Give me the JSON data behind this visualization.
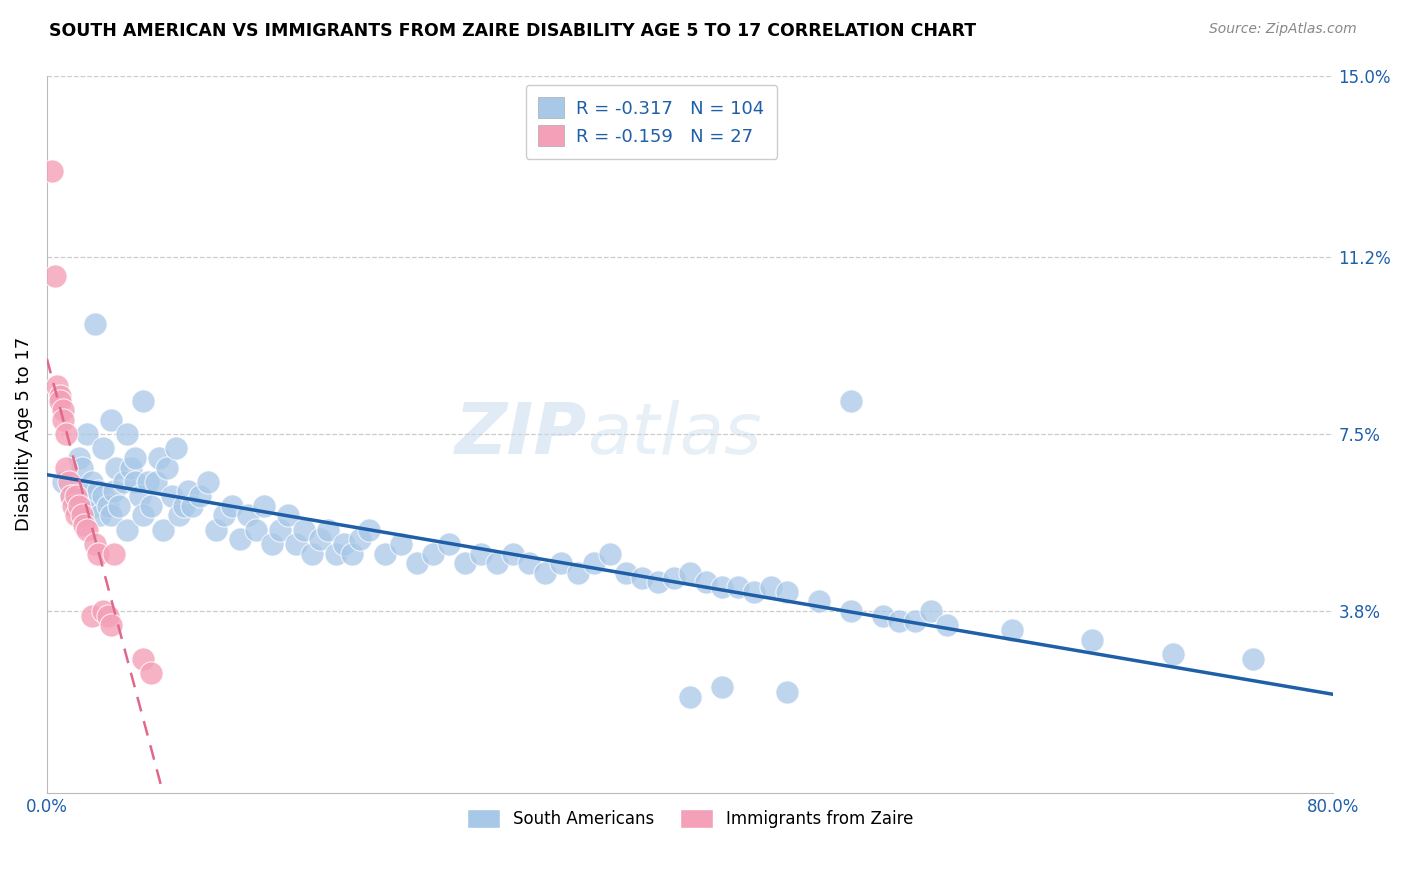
{
  "title": "SOUTH AMERICAN VS IMMIGRANTS FROM ZAIRE DISABILITY AGE 5 TO 17 CORRELATION CHART",
  "source": "Source: ZipAtlas.com",
  "ylabel": "Disability Age 5 to 17",
  "xlim": [
    0.0,
    0.8
  ],
  "ylim": [
    0.0,
    0.15
  ],
  "yticks": [
    0.038,
    0.075,
    0.112,
    0.15
  ],
  "ytick_labels": [
    "3.8%",
    "7.5%",
    "11.2%",
    "15.0%"
  ],
  "xticks": [
    0.0,
    0.2,
    0.4,
    0.6,
    0.8
  ],
  "xtick_labels": [
    "0.0%",
    "",
    "",
    "",
    "80.0%"
  ],
  "blue_color": "#A8C8E8",
  "pink_color": "#F4A0B8",
  "blue_line_color": "#1E5FA8",
  "pink_line_color": "#E06888",
  "accent_color": "#1E5FA8",
  "legend_R_blue": "-0.317",
  "legend_N_blue": "104",
  "legend_R_pink": "-0.159",
  "legend_N_pink": "27",
  "watermark_zip": "ZIP",
  "watermark_atlas": "atlas",
  "blue_scatter_x": [
    0.01,
    0.015,
    0.018,
    0.02,
    0.022,
    0.025,
    0.025,
    0.028,
    0.03,
    0.03,
    0.032,
    0.033,
    0.035,
    0.035,
    0.038,
    0.04,
    0.04,
    0.042,
    0.043,
    0.045,
    0.048,
    0.05,
    0.05,
    0.052,
    0.055,
    0.055,
    0.058,
    0.06,
    0.06,
    0.063,
    0.065,
    0.068,
    0.07,
    0.072,
    0.075,
    0.078,
    0.08,
    0.082,
    0.085,
    0.088,
    0.09,
    0.095,
    0.1,
    0.105,
    0.11,
    0.115,
    0.12,
    0.125,
    0.13,
    0.135,
    0.14,
    0.145,
    0.15,
    0.155,
    0.16,
    0.165,
    0.17,
    0.175,
    0.18,
    0.185,
    0.19,
    0.195,
    0.2,
    0.21,
    0.22,
    0.23,
    0.24,
    0.25,
    0.26,
    0.27,
    0.28,
    0.29,
    0.3,
    0.31,
    0.32,
    0.33,
    0.34,
    0.35,
    0.36,
    0.37,
    0.38,
    0.39,
    0.4,
    0.41,
    0.42,
    0.43,
    0.44,
    0.45,
    0.46,
    0.48,
    0.5,
    0.52,
    0.53,
    0.54,
    0.55,
    0.56,
    0.6,
    0.65,
    0.7,
    0.75,
    0.4,
    0.42,
    0.46,
    0.5
  ],
  "blue_scatter_y": [
    0.065,
    0.062,
    0.06,
    0.07,
    0.068,
    0.075,
    0.062,
    0.065,
    0.098,
    0.06,
    0.063,
    0.058,
    0.062,
    0.072,
    0.06,
    0.078,
    0.058,
    0.063,
    0.068,
    0.06,
    0.065,
    0.075,
    0.055,
    0.068,
    0.07,
    0.065,
    0.062,
    0.082,
    0.058,
    0.065,
    0.06,
    0.065,
    0.07,
    0.055,
    0.068,
    0.062,
    0.072,
    0.058,
    0.06,
    0.063,
    0.06,
    0.062,
    0.065,
    0.055,
    0.058,
    0.06,
    0.053,
    0.058,
    0.055,
    0.06,
    0.052,
    0.055,
    0.058,
    0.052,
    0.055,
    0.05,
    0.053,
    0.055,
    0.05,
    0.052,
    0.05,
    0.053,
    0.055,
    0.05,
    0.052,
    0.048,
    0.05,
    0.052,
    0.048,
    0.05,
    0.048,
    0.05,
    0.048,
    0.046,
    0.048,
    0.046,
    0.048,
    0.05,
    0.046,
    0.045,
    0.044,
    0.045,
    0.046,
    0.044,
    0.043,
    0.043,
    0.042,
    0.043,
    0.042,
    0.04,
    0.038,
    0.037,
    0.036,
    0.036,
    0.038,
    0.035,
    0.034,
    0.032,
    0.029,
    0.028,
    0.02,
    0.022,
    0.021,
    0.082
  ],
  "pink_scatter_x": [
    0.003,
    0.005,
    0.006,
    0.008,
    0.008,
    0.01,
    0.01,
    0.012,
    0.012,
    0.014,
    0.015,
    0.016,
    0.018,
    0.018,
    0.02,
    0.022,
    0.023,
    0.025,
    0.028,
    0.03,
    0.032,
    0.035,
    0.038,
    0.04,
    0.042,
    0.06,
    0.065
  ],
  "pink_scatter_y": [
    0.13,
    0.108,
    0.085,
    0.083,
    0.082,
    0.08,
    0.078,
    0.075,
    0.068,
    0.065,
    0.062,
    0.06,
    0.058,
    0.062,
    0.06,
    0.058,
    0.056,
    0.055,
    0.037,
    0.052,
    0.05,
    0.038,
    0.037,
    0.035,
    0.05,
    0.028,
    0.025
  ]
}
